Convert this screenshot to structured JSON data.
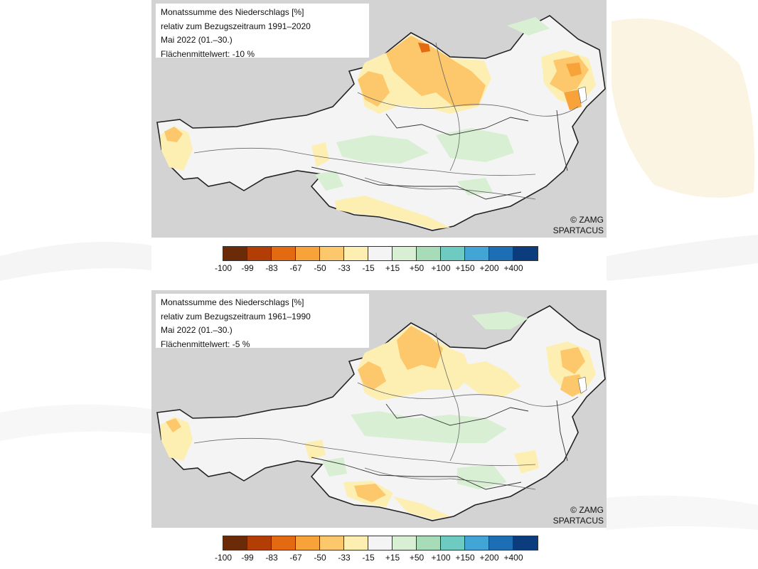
{
  "maps": [
    {
      "info_lines": [
        "Monatssumme des Niederschlags [%]",
        "relativ zum Bezugszeitraum 1991–2020",
        "Mai 2022 (01.–30.)",
        "Flächenmittelwert: -10 %"
      ],
      "credit_lines": [
        "© ZAMG",
        "SPARTACUS"
      ]
    },
    {
      "info_lines": [
        "Monatssumme des Niederschlags [%]",
        "relativ zum Bezugszeitraum 1961–1990",
        "Mai 2022 (01.–30.)",
        "Flächenmittelwert: -5 %"
      ],
      "credit_lines": [
        "© ZAMG",
        "SPARTACUS"
      ]
    }
  ],
  "legend": {
    "colors": [
      "#6b2a08",
      "#b23e06",
      "#e46a12",
      "#f8a33a",
      "#fcc86b",
      "#fdeeb2",
      "#f4f4f4",
      "#d8efd4",
      "#a8dcb8",
      "#6ecbc1",
      "#43a5d6",
      "#1d6fb5",
      "#0b3c7e"
    ],
    "labels": [
      "-100",
      "-99",
      "-83",
      "-67",
      "-50",
      "-33",
      "-15",
      "+15",
      "+50",
      "+100",
      "+150",
      "+200",
      "+400"
    ]
  }
}
